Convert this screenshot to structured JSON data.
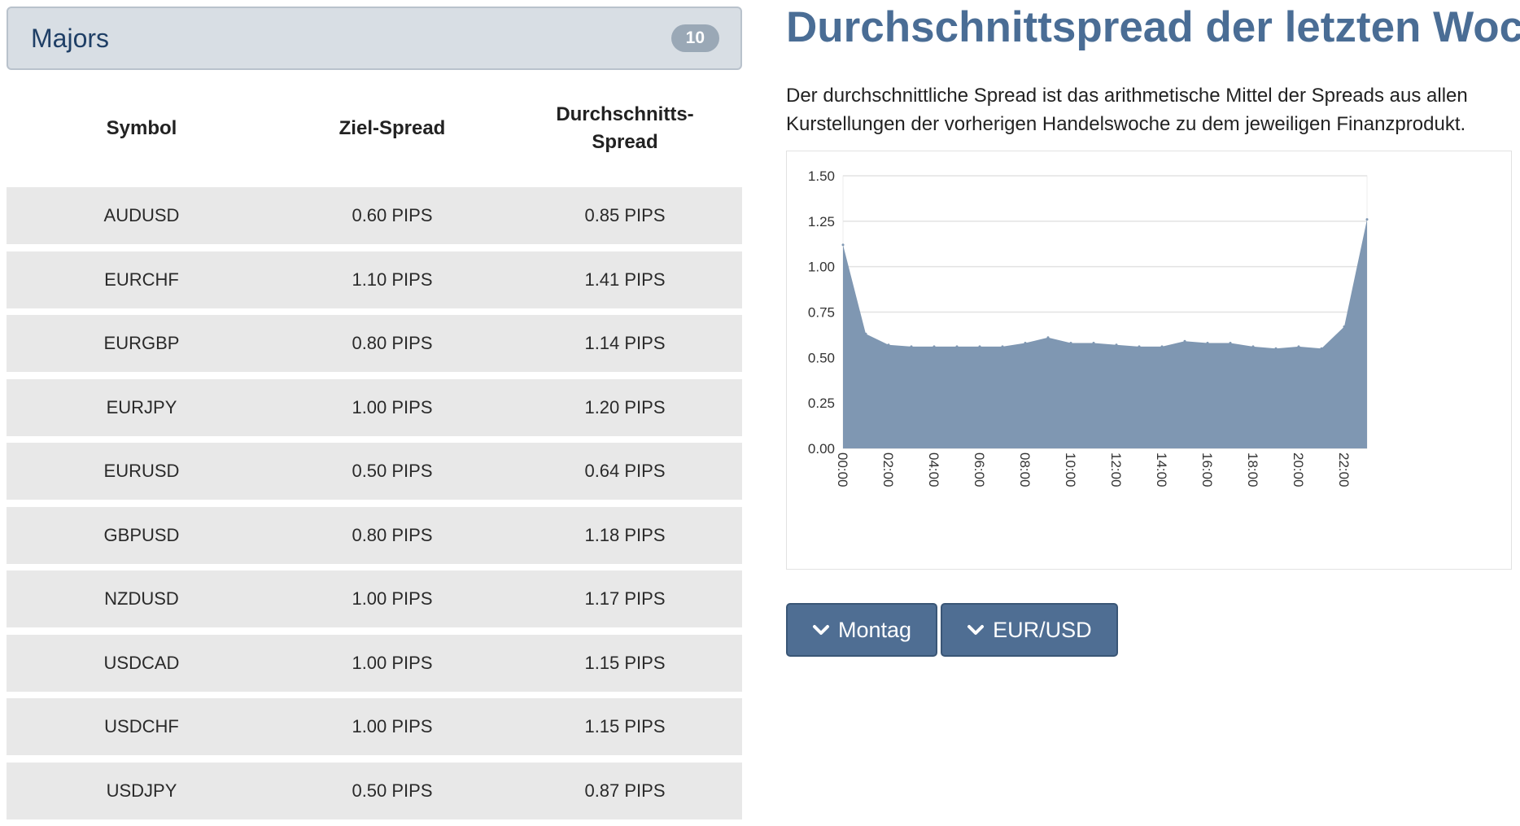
{
  "panel": {
    "title": "Majors",
    "count": "10"
  },
  "table": {
    "headers": [
      "Symbol",
      "Ziel-Spread",
      "Durchschnitts-\nSpread"
    ],
    "rows": [
      [
        "AUDUSD",
        "0.60 PIPS",
        "0.85 PIPS"
      ],
      [
        "EURCHF",
        "1.10 PIPS",
        "1.41 PIPS"
      ],
      [
        "EURGBP",
        "0.80 PIPS",
        "1.14 PIPS"
      ],
      [
        "EURJPY",
        "1.00 PIPS",
        "1.20 PIPS"
      ],
      [
        "EURUSD",
        "0.50 PIPS",
        "0.64 PIPS"
      ],
      [
        "GBPUSD",
        "0.80 PIPS",
        "1.18 PIPS"
      ],
      [
        "NZDUSD",
        "1.00 PIPS",
        "1.17 PIPS"
      ],
      [
        "USDCAD",
        "1.00 PIPS",
        "1.15 PIPS"
      ],
      [
        "USDCHF",
        "1.00 PIPS",
        "1.15 PIPS"
      ],
      [
        "USDJPY",
        "0.50 PIPS",
        "0.87 PIPS"
      ]
    ]
  },
  "heading": "Durchschnittspread der letzten Woche",
  "description": "Der durchschnittliche Spread ist das arithmetische Mittel der Spreads aus allen Kurstellungen der vorherigen Handelswoche zu dem jeweiligen Finanzprodukt.",
  "controls": {
    "day_label": "Montag",
    "symbol_label": "EUR/USD",
    "icon": "chevron-down-icon"
  },
  "chart_data": {
    "type": "area",
    "x": [
      "00:00",
      "01:00",
      "02:00",
      "03:00",
      "04:00",
      "05:00",
      "06:00",
      "07:00",
      "08:00",
      "09:00",
      "10:00",
      "11:00",
      "12:00",
      "13:00",
      "14:00",
      "15:00",
      "16:00",
      "17:00",
      "18:00",
      "19:00",
      "20:00",
      "21:00",
      "22:00",
      "23:00"
    ],
    "y": [
      1.12,
      0.63,
      0.57,
      0.56,
      0.56,
      0.56,
      0.56,
      0.56,
      0.58,
      0.61,
      0.58,
      0.58,
      0.57,
      0.56,
      0.56,
      0.59,
      0.58,
      0.58,
      0.56,
      0.55,
      0.56,
      0.55,
      0.67,
      1.26
    ],
    "x_tick_labels": [
      "00:00",
      "02:00",
      "04:00",
      "06:00",
      "08:00",
      "10:00",
      "12:00",
      "14:00",
      "16:00",
      "18:00",
      "20:00",
      "22:00"
    ],
    "y_tick_labels": [
      "1.50",
      "1.25",
      "1.00",
      "0.75",
      "0.50",
      "0.25",
      "0.00"
    ],
    "ylim": [
      0,
      1.5
    ],
    "grid": true,
    "fill_color": "#7f97b2",
    "title": "",
    "xlabel": "",
    "ylabel": ""
  }
}
